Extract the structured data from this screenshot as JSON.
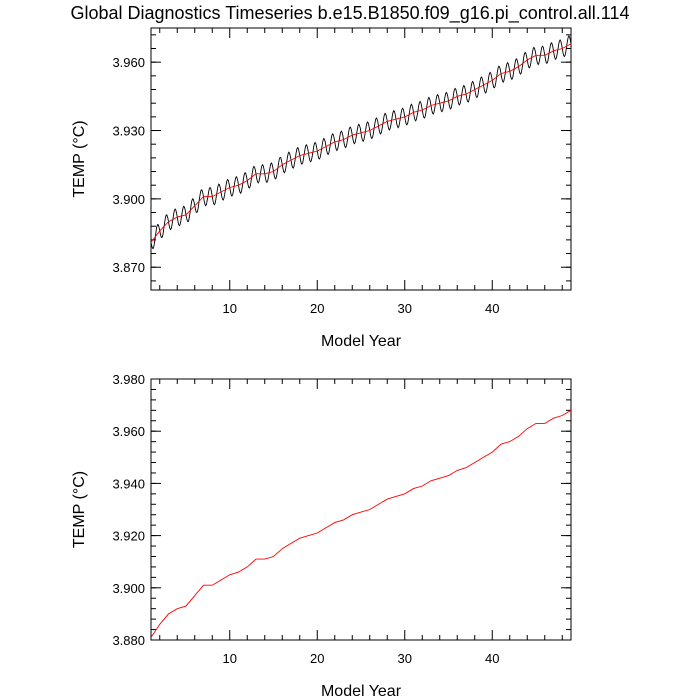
{
  "figure": {
    "title": "Global Diagnostics Timeseries b.e15.B1850.f09_g16.pi_control.all.114"
  },
  "chart_data": [
    {
      "type": "line",
      "xlabel": "Model Year",
      "ylabel": "TEMP (°C)",
      "xlim": [
        1,
        49
      ],
      "ylim": [
        3.86,
        3.975
      ],
      "xticks": [
        10,
        20,
        30,
        40
      ],
      "yticks": [
        3.87,
        3.9,
        3.93,
        3.96
      ],
      "ytick_labels": [
        "3.870",
        "3.900",
        "3.930",
        "3.960"
      ],
      "grid": false,
      "series": [
        {
          "color": "#000000",
          "description": "monthly values, seasonal oscillation ~±0.004 around trend",
          "x_start": 1,
          "x_end": 49,
          "points_per_year": 12,
          "amplitude": 0.004
        },
        {
          "color": "#ff0000",
          "x": [
            1,
            2,
            3,
            4,
            5,
            6,
            7,
            8,
            9,
            10,
            11,
            12,
            13,
            14,
            15,
            16,
            17,
            18,
            19,
            20,
            21,
            22,
            23,
            24,
            25,
            26,
            27,
            28,
            29,
            30,
            31,
            32,
            33,
            34,
            35,
            36,
            37,
            38,
            39,
            40,
            41,
            42,
            43,
            44,
            45,
            46,
            47,
            48,
            49
          ],
          "values": [
            3.881,
            3.886,
            3.89,
            3.892,
            3.893,
            3.897,
            3.901,
            3.901,
            3.903,
            3.905,
            3.906,
            3.908,
            3.911,
            3.911,
            3.912,
            3.915,
            3.917,
            3.919,
            3.92,
            3.921,
            3.923,
            3.925,
            3.926,
            3.928,
            3.929,
            3.93,
            3.932,
            3.934,
            3.935,
            3.936,
            3.938,
            3.939,
            3.941,
            3.942,
            3.943,
            3.945,
            3.946,
            3.948,
            3.95,
            3.952,
            3.955,
            3.956,
            3.958,
            3.961,
            3.963,
            3.963,
            3.965,
            3.966,
            3.968
          ]
        }
      ]
    },
    {
      "type": "line",
      "xlabel": "Model Year",
      "ylabel": "TEMP (°C)",
      "xlim": [
        1,
        49
      ],
      "ylim": [
        3.88,
        3.98
      ],
      "xticks": [
        10,
        20,
        30,
        40
      ],
      "yticks": [
        3.88,
        3.9,
        3.92,
        3.94,
        3.96,
        3.98
      ],
      "ytick_labels": [
        "3.880",
        "3.900",
        "3.920",
        "3.940",
        "3.960",
        "3.980"
      ],
      "grid": false,
      "series": [
        {
          "color": "#ff0000",
          "x": [
            1,
            2,
            3,
            4,
            5,
            6,
            7,
            8,
            9,
            10,
            11,
            12,
            13,
            14,
            15,
            16,
            17,
            18,
            19,
            20,
            21,
            22,
            23,
            24,
            25,
            26,
            27,
            28,
            29,
            30,
            31,
            32,
            33,
            34,
            35,
            36,
            37,
            38,
            39,
            40,
            41,
            42,
            43,
            44,
            45,
            46,
            47,
            48,
            49
          ],
          "values": [
            3.881,
            3.886,
            3.89,
            3.892,
            3.893,
            3.897,
            3.901,
            3.901,
            3.903,
            3.905,
            3.906,
            3.908,
            3.911,
            3.911,
            3.912,
            3.915,
            3.917,
            3.919,
            3.92,
            3.921,
            3.923,
            3.925,
            3.926,
            3.928,
            3.929,
            3.93,
            3.932,
            3.934,
            3.935,
            3.936,
            3.938,
            3.939,
            3.941,
            3.942,
            3.943,
            3.945,
            3.946,
            3.948,
            3.95,
            3.952,
            3.955,
            3.956,
            3.958,
            3.961,
            3.963,
            3.963,
            3.965,
            3.966,
            3.968
          ]
        }
      ]
    }
  ]
}
